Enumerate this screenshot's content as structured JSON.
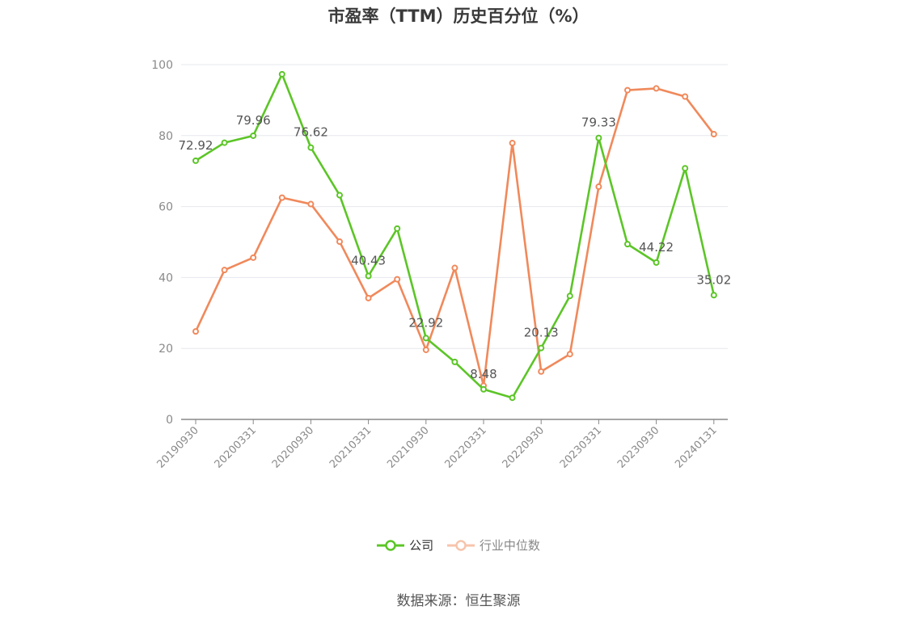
{
  "chart_data": {
    "type": "line",
    "title": "市盈率（TTM）历史百分位（%）",
    "xlabel": "",
    "ylabel": "",
    "ylim": [
      0,
      100
    ],
    "yticks": [
      0,
      20,
      40,
      60,
      80,
      100
    ],
    "categories": [
      "20190930",
      "20191231",
      "20200331",
      "20200630",
      "20200930",
      "20201231",
      "20210331",
      "20210630",
      "20210930",
      "20211231",
      "20220331",
      "20220630",
      "20220930",
      "20221231",
      "20230331",
      "20230630",
      "20230930",
      "20231231",
      "20240131"
    ],
    "tick_labels": [
      "20190930",
      "20200331",
      "20200930",
      "20210331",
      "20210930",
      "20220331",
      "20220930",
      "20230331",
      "20230930",
      "20240131"
    ],
    "tick_indices": [
      0,
      2,
      4,
      6,
      8,
      10,
      12,
      14,
      16,
      18
    ],
    "series": [
      {
        "name": "公司",
        "color": "#5cc527",
        "values": [
          72.92,
          78.0,
          79.96,
          97.3,
          76.62,
          63.2,
          40.43,
          53.8,
          22.92,
          16.2,
          8.48,
          6.1,
          20.13,
          34.8,
          79.33,
          49.4,
          44.22,
          70.8,
          35.02
        ],
        "labeled": [
          {
            "index": 0,
            "text": "72.92"
          },
          {
            "index": 2,
            "text": "79.96"
          },
          {
            "index": 4,
            "text": "76.62"
          },
          {
            "index": 6,
            "text": "40.43"
          },
          {
            "index": 8,
            "text": "22.92"
          },
          {
            "index": 10,
            "text": "8.48"
          },
          {
            "index": 12,
            "text": "20.13"
          },
          {
            "index": 14,
            "text": "79.33"
          },
          {
            "index": 16,
            "text": "44.22"
          },
          {
            "index": 18,
            "text": "35.02"
          }
        ]
      },
      {
        "name": "行业中位数",
        "color": "#f0895b",
        "values": [
          24.8,
          42.1,
          45.6,
          62.5,
          60.7,
          50.1,
          34.2,
          39.5,
          19.6,
          42.7,
          9.5,
          77.9,
          13.5,
          18.4,
          65.6,
          92.8,
          93.3,
          91.0,
          80.4
        ]
      }
    ],
    "legend_position": "bottom",
    "grid": true
  },
  "footer": {
    "source": "数据来源：恒生聚源"
  }
}
